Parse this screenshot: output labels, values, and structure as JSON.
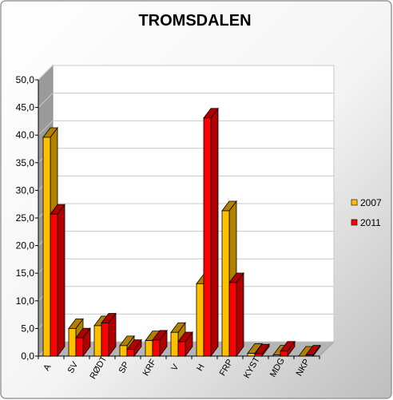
{
  "chart_data": {
    "type": "bar",
    "title": "TROMSDALEN",
    "categories": [
      "A",
      "SV",
      "RØDT",
      "SP",
      "KRF",
      "V",
      "H",
      "FRP",
      "KYST",
      "MDG",
      "NKP"
    ],
    "series": [
      {
        "name": "2007",
        "color": "#ffc000",
        "side_color": "#b08000",
        "values": [
          39.6,
          5.0,
          5.5,
          1.9,
          2.8,
          4.3,
          13.1,
          26.3,
          0.5,
          0.2,
          0.0
        ]
      },
      {
        "name": "2011",
        "color": "#ff0000",
        "side_color": "#b00000",
        "values": [
          25.7,
          3.3,
          6.0,
          1.2,
          2.9,
          2.6,
          43.1,
          13.3,
          0.4,
          0.9,
          0.2
        ]
      }
    ],
    "y_ticks": [
      "0,0",
      "5,0",
      "10,0",
      "15,0",
      "20,0",
      "25,0",
      "30,0",
      "35,0",
      "40,0",
      "45,0",
      "50,0"
    ],
    "ylim": [
      0,
      50
    ],
    "xlabel": "",
    "ylabel": "",
    "grid": true,
    "legend_position": "right"
  }
}
